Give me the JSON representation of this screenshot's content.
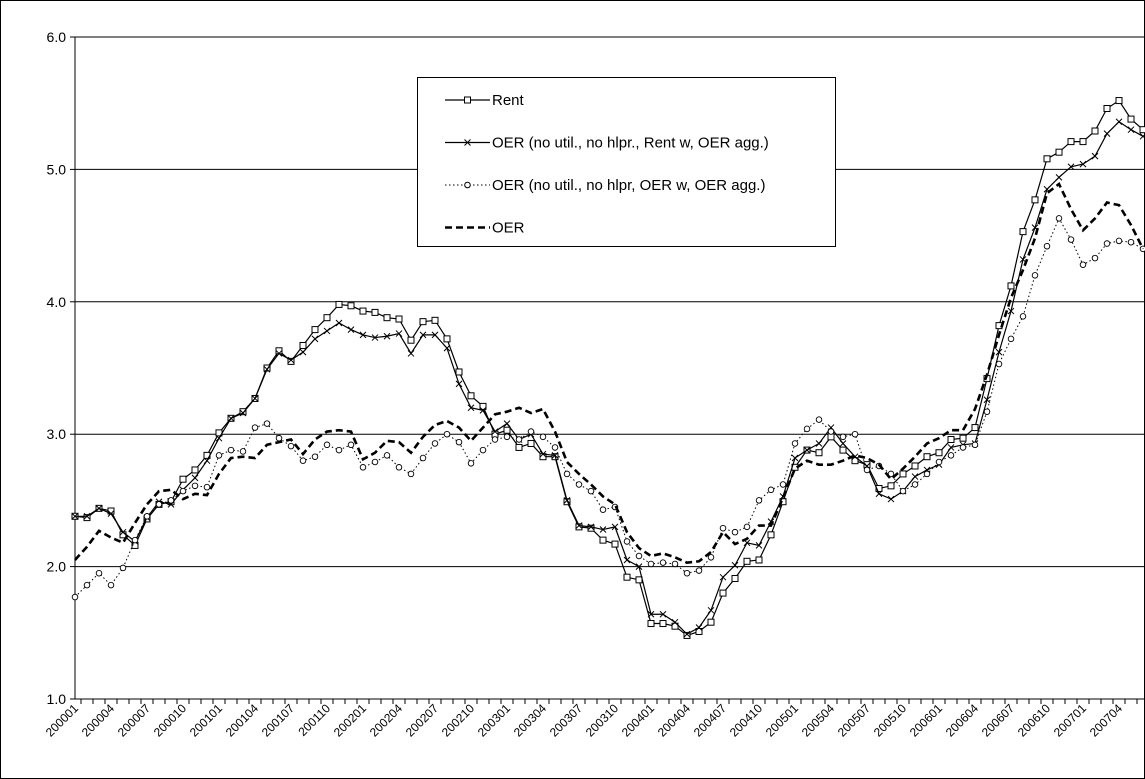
{
  "chart_data": {
    "type": "line",
    "categories": [
      "200001",
      null,
      null,
      "200004",
      null,
      null,
      "200007",
      null,
      null,
      "200010",
      null,
      null,
      "200101",
      null,
      null,
      "200104",
      null,
      null,
      "200107",
      null,
      null,
      "200110",
      null,
      null,
      "200201",
      null,
      null,
      "200204",
      null,
      null,
      "200207",
      null,
      null,
      "200210",
      null,
      null,
      "200301",
      null,
      null,
      "200304",
      null,
      null,
      "200307",
      null,
      null,
      "200310",
      null,
      null,
      "200401",
      null,
      null,
      "200404",
      null,
      null,
      "200407",
      null,
      null,
      "200410",
      null,
      null,
      "200501",
      null,
      null,
      "200504",
      null,
      null,
      "200507",
      null,
      null,
      "200510",
      null,
      null,
      "200601",
      null,
      null,
      "200604",
      null,
      null,
      "200607",
      null,
      null,
      "200610",
      null,
      null,
      "200701",
      null,
      null,
      "200704",
      null,
      null
    ],
    "ylim": [
      1.0,
      6.0
    ],
    "yticks": [
      {
        "value": 1.0,
        "label": "1.0"
      },
      {
        "value": 2.0,
        "label": "2.0"
      },
      {
        "value": 3.0,
        "label": "3.0"
      },
      {
        "value": 4.0,
        "label": "4.0"
      },
      {
        "value": 5.0,
        "label": "5.0"
      },
      {
        "value": 6.0,
        "label": "6.0"
      }
    ],
    "grid": true,
    "series": [
      {
        "name": "Rent",
        "color": "#000000",
        "style": "solid",
        "marker": "square",
        "values": [
          2.38,
          2.37,
          2.44,
          2.42,
          2.24,
          2.16,
          2.36,
          2.47,
          2.49,
          2.66,
          2.73,
          2.84,
          3.01,
          3.12,
          3.17,
          3.27,
          3.5,
          3.63,
          3.55,
          3.67,
          3.79,
          3.88,
          3.98,
          3.97,
          3.93,
          3.92,
          3.88,
          3.87,
          3.71,
          3.85,
          3.86,
          3.72,
          3.47,
          3.29,
          3.21,
          3.0,
          3.03,
          2.9,
          2.93,
          2.83,
          2.83,
          2.49,
          2.3,
          2.29,
          2.2,
          2.17,
          1.92,
          1.9,
          1.57,
          1.57,
          1.55,
          1.48,
          1.51,
          1.58,
          1.8,
          1.91,
          2.04,
          2.05,
          2.24,
          2.49,
          2.75,
          2.88,
          2.86,
          2.98,
          2.88,
          2.8,
          2.77,
          2.59,
          2.61,
          2.7,
          2.76,
          2.83,
          2.86,
          2.96,
          2.97,
          3.05,
          3.42,
          3.82,
          4.12,
          4.53,
          4.77,
          5.08,
          5.13,
          5.21,
          5.21,
          5.29,
          5.46,
          5.52,
          5.38,
          5.3
        ]
      },
      {
        "name": "OER (no util., no hlpr., Rent w, OER agg.)",
        "color": "#000000",
        "style": "solid",
        "marker": "x",
        "values": [
          2.38,
          2.38,
          2.44,
          2.4,
          2.26,
          2.19,
          2.37,
          2.49,
          2.47,
          2.58,
          2.67,
          2.8,
          2.97,
          3.12,
          3.16,
          3.27,
          3.49,
          3.61,
          3.56,
          3.62,
          3.72,
          3.78,
          3.84,
          3.79,
          3.75,
          3.73,
          3.74,
          3.76,
          3.61,
          3.75,
          3.75,
          3.65,
          3.38,
          3.2,
          3.18,
          3.02,
          3.08,
          2.96,
          3.0,
          2.85,
          2.84,
          2.5,
          2.31,
          2.3,
          2.28,
          2.3,
          2.05,
          2.0,
          1.64,
          1.64,
          1.58,
          1.49,
          1.54,
          1.67,
          1.92,
          2.01,
          2.18,
          2.16,
          2.34,
          2.53,
          2.82,
          2.88,
          2.93,
          3.05,
          2.93,
          2.83,
          2.76,
          2.55,
          2.51,
          2.57,
          2.68,
          2.73,
          2.77,
          2.9,
          2.92,
          2.93,
          3.26,
          3.62,
          3.93,
          4.32,
          4.56,
          4.85,
          4.94,
          5.02,
          5.04,
          5.1,
          5.27,
          5.36,
          5.3,
          5.25
        ]
      },
      {
        "name": "OER (no util., no hlpr, OER w, OER agg.)",
        "color": "#000000",
        "style": "dotted",
        "marker": "circle",
        "values": [
          1.77,
          1.86,
          1.95,
          1.86,
          1.99,
          2.2,
          2.38,
          2.47,
          2.5,
          2.57,
          2.61,
          2.6,
          2.84,
          2.88,
          2.87,
          3.05,
          3.08,
          2.97,
          2.91,
          2.8,
          2.83,
          2.92,
          2.88,
          2.92,
          2.75,
          2.79,
          2.84,
          2.75,
          2.7,
          2.82,
          2.93,
          3.0,
          2.94,
          2.78,
          2.88,
          2.96,
          2.98,
          2.96,
          3.02,
          2.98,
          2.9,
          2.7,
          2.62,
          2.57,
          2.43,
          2.45,
          2.19,
          2.08,
          2.02,
          2.03,
          2.02,
          1.95,
          1.97,
          2.07,
          2.29,
          2.26,
          2.3,
          2.5,
          2.58,
          2.62,
          2.93,
          3.04,
          3.11,
          3.02,
          2.98,
          3.0,
          2.73,
          2.76,
          2.7,
          2.57,
          2.62,
          2.7,
          2.79,
          2.84,
          2.9,
          2.92,
          3.17,
          3.53,
          3.72,
          3.89,
          4.2,
          4.42,
          4.63,
          4.47,
          4.28,
          4.33,
          4.44,
          4.46,
          4.45,
          4.4
        ]
      },
      {
        "name": "OER",
        "color": "#000000",
        "style": "dashed",
        "marker": "none",
        "values": [
          2.05,
          2.15,
          2.27,
          2.22,
          2.18,
          2.33,
          2.47,
          2.57,
          2.58,
          2.51,
          2.55,
          2.54,
          2.7,
          2.82,
          2.83,
          2.82,
          2.92,
          2.94,
          2.96,
          2.85,
          2.96,
          3.02,
          3.03,
          3.02,
          2.81,
          2.86,
          2.95,
          2.94,
          2.86,
          2.98,
          3.07,
          3.1,
          3.05,
          2.95,
          3.05,
          3.15,
          3.17,
          3.2,
          3.16,
          3.19,
          3.02,
          2.79,
          2.7,
          2.62,
          2.53,
          2.47,
          2.26,
          2.14,
          2.08,
          2.1,
          2.07,
          2.03,
          2.04,
          2.11,
          2.26,
          2.17,
          2.21,
          2.31,
          2.31,
          2.52,
          2.74,
          2.8,
          2.77,
          2.77,
          2.8,
          2.84,
          2.82,
          2.77,
          2.66,
          2.74,
          2.83,
          2.93,
          2.97,
          3.03,
          3.03,
          3.19,
          3.45,
          3.75,
          4.03,
          4.24,
          4.48,
          4.82,
          4.89,
          4.7,
          4.54,
          4.63,
          4.75,
          4.73,
          4.58,
          4.4
        ]
      }
    ]
  }
}
